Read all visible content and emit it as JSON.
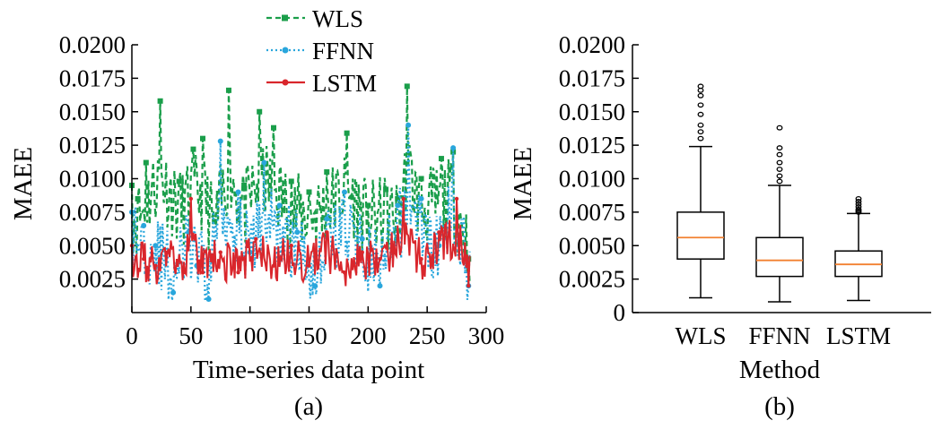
{
  "colors": {
    "WLS": "#1a9e4a",
    "FFNN": "#29a6dc",
    "LSTM": "#d9262c",
    "median": "#f28030"
  },
  "chart_data": [
    {
      "type": "line",
      "panel_label": "(a)",
      "xlabel": "Time-series data point",
      "ylabel": "MAEE",
      "xlim": [
        0,
        300
      ],
      "ylim": [
        0,
        0.02
      ],
      "x_ticks": [
        "0",
        "50",
        "100",
        "150",
        "200",
        "250",
        "300"
      ],
      "y_ticks": [
        "0.0025",
        "0.0050",
        "0.0075",
        "0.0100",
        "0.0125",
        "0.0150",
        "0.0175",
        "0.0200"
      ],
      "legend": "top-center",
      "x_count": 287,
      "series": [
        {
          "name": "WLS",
          "style": "dashed-square",
          "key_points": [
            [
              0,
              0.0095
            ],
            [
              5,
              0.0085
            ],
            [
              12,
              0.0112
            ],
            [
              24,
              0.0158
            ],
            [
              40,
              0.0098
            ],
            [
              52,
              0.0122
            ],
            [
              60,
              0.013
            ],
            [
              70,
              0.0068
            ],
            [
              82,
              0.0166
            ],
            [
              95,
              0.0095
            ],
            [
              108,
              0.015
            ],
            [
              120,
              0.0138
            ],
            [
              135,
              0.0098
            ],
            [
              150,
              0.009
            ],
            [
              165,
              0.0105
            ],
            [
              182,
              0.0134
            ],
            [
              200,
              0.008
            ],
            [
              215,
              0.0092
            ],
            [
              225,
              0.0085
            ],
            [
              233,
              0.0169
            ],
            [
              245,
              0.01
            ],
            [
              262,
              0.0115
            ],
            [
              272,
              0.012
            ],
            [
              285,
              0.004
            ]
          ]
        },
        {
          "name": "FFNN",
          "style": "dotted-circle",
          "key_points": [
            [
              0,
              0.0075
            ],
            [
              10,
              0.0065
            ],
            [
              20,
              0.005
            ],
            [
              35,
              0.0015
            ],
            [
              48,
              0.006
            ],
            [
              55,
              0.0035
            ],
            [
              65,
              0.001
            ],
            [
              75,
              0.0128
            ],
            [
              90,
              0.009
            ],
            [
              100,
              0.0045
            ],
            [
              112,
              0.0112
            ],
            [
              125,
              0.008
            ],
            [
              140,
              0.006
            ],
            [
              155,
              0.002
            ],
            [
              165,
              0.007
            ],
            [
              180,
              0.009
            ],
            [
              195,
              0.0055
            ],
            [
              210,
              0.002
            ],
            [
              225,
              0.008
            ],
            [
              234,
              0.014
            ],
            [
              245,
              0.0085
            ],
            [
              260,
              0.005
            ],
            [
              272,
              0.0123
            ],
            [
              285,
              0.002
            ]
          ]
        },
        {
          "name": "LSTM",
          "style": "solid-dot",
          "key_points": [
            [
              0,
              0.005
            ],
            [
              10,
              0.004
            ],
            [
              20,
              0.0035
            ],
            [
              30,
              0.0045
            ],
            [
              45,
              0.003
            ],
            [
              50,
              0.0085
            ],
            [
              60,
              0.003
            ],
            [
              75,
              0.0045
            ],
            [
              90,
              0.003
            ],
            [
              105,
              0.0055
            ],
            [
              120,
              0.0035
            ],
            [
              135,
              0.005
            ],
            [
              150,
              0.0035
            ],
            [
              165,
              0.006
            ],
            [
              180,
              0.003
            ],
            [
              195,
              0.0045
            ],
            [
              210,
              0.004
            ],
            [
              230,
              0.0085
            ],
            [
              245,
              0.004
            ],
            [
              260,
              0.006
            ],
            [
              275,
              0.0085
            ],
            [
              285,
              0.002
            ]
          ]
        }
      ]
    },
    {
      "type": "box",
      "panel_label": "(b)",
      "xlabel": "Method",
      "ylabel": "MAEE",
      "ylim": [
        0,
        0.02
      ],
      "y_ticks": [
        "0",
        "0.0025",
        "0.0050",
        "0.0075",
        "0.0100",
        "0.0125",
        "0.0150",
        "0.0175",
        "0.0200"
      ],
      "categories": [
        "WLS",
        "FFNN",
        "LSTM"
      ],
      "boxes": [
        {
          "name": "WLS",
          "whisker_low": 0.0011,
          "q1": 0.004,
          "median": 0.0056,
          "q3": 0.0075,
          "whisker_high": 0.0124,
          "outliers": [
            0.013,
            0.0135,
            0.014,
            0.0148,
            0.0155,
            0.0162,
            0.0166,
            0.0169
          ]
        },
        {
          "name": "FFNN",
          "whisker_low": 0.0008,
          "q1": 0.0027,
          "median": 0.0039,
          "q3": 0.0056,
          "whisker_high": 0.0095,
          "outliers": [
            0.0098,
            0.0102,
            0.0107,
            0.0112,
            0.0118,
            0.0123,
            0.0138
          ]
        },
        {
          "name": "LSTM",
          "whisker_low": 0.0009,
          "q1": 0.0027,
          "median": 0.0036,
          "q3": 0.0046,
          "whisker_high": 0.0074,
          "outliers": [
            0.0075,
            0.0076,
            0.0077,
            0.0079,
            0.0081,
            0.0083,
            0.0085
          ]
        }
      ]
    }
  ]
}
